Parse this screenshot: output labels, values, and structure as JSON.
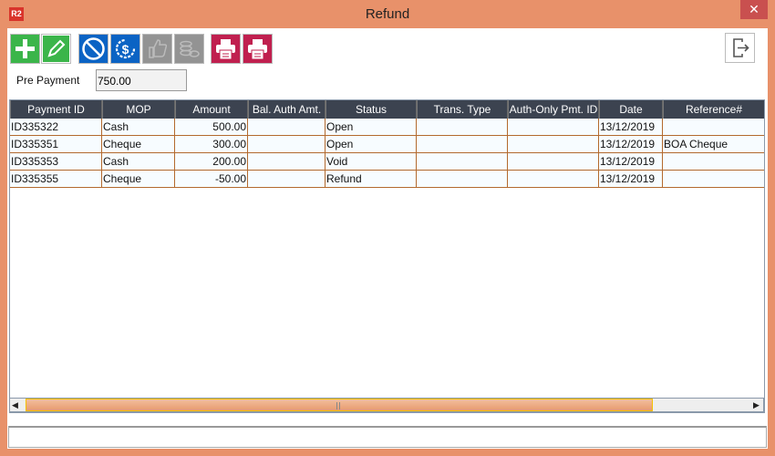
{
  "window": {
    "title": "Refund",
    "logo": "R2",
    "close_icon": "close-icon"
  },
  "toolbar": {
    "buttons": [
      {
        "name": "add",
        "icon": "plus-icon",
        "color": "#3BB54A"
      },
      {
        "name": "edit",
        "icon": "pencil-icon",
        "color": "#3BB54A"
      },
      {
        "name": "void",
        "icon": "prohibited-icon",
        "color": "#0B63C4"
      },
      {
        "name": "refund",
        "icon": "dollar-refresh-icon",
        "color": "#0B63C4"
      },
      {
        "name": "approve",
        "icon": "thumbs-up-icon",
        "color": "#939393"
      },
      {
        "name": "view-coins",
        "icon": "coins-eye-icon",
        "color": "#939393"
      },
      {
        "name": "print",
        "icon": "printer-icon",
        "color": "#C0204F"
      },
      {
        "name": "print-2",
        "icon": "printer-icon",
        "color": "#C0204F"
      }
    ],
    "exit_icon": "exit-icon"
  },
  "pre_payment": {
    "label": "Pre Payment",
    "value": "750.00"
  },
  "table": {
    "columns": [
      "Payment ID",
      "MOP",
      "Amount",
      "Bal. Auth Amt.",
      "Status",
      "Trans. Type",
      "Auth-Only Pmt. ID",
      "Date",
      "Reference#"
    ],
    "rows": [
      [
        "ID335322",
        "Cash",
        "500.00",
        "",
        "Open",
        "",
        "",
        "13/12/2019",
        ""
      ],
      [
        "ID335351",
        "Cheque",
        "300.00",
        "",
        "Open",
        "",
        "",
        "13/12/2019",
        "BOA Cheque"
      ],
      [
        "ID335353",
        "Cash",
        "200.00",
        "",
        "Void",
        "",
        "",
        "13/12/2019",
        ""
      ],
      [
        "ID335355",
        "Cheque",
        "-50.00",
        "",
        "Refund",
        "",
        "",
        "13/12/2019",
        ""
      ]
    ]
  },
  "status_bar": ""
}
